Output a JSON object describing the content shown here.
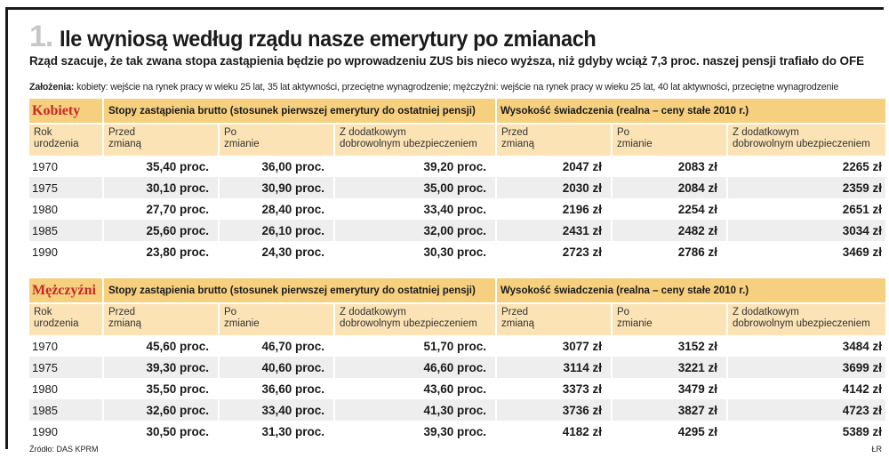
{
  "title_number": "1.",
  "title": "Ile wyniosą według rządu nasze emerytury po zmianach",
  "subtitle": "Rząd szacuje, że tak zwana stopa zastąpienia będzie po wprowadzeniu ZUS bis nieco wyższa, niż gdyby wciąż 7,3 proc. naszej pensji trafiało do OFE",
  "assumptions_label": "Założenia:",
  "assumptions_text": " kobiety: wejście na rynek pracy w wieku 25 lat, 35 lat aktywności, przeciętne wynagrodzenie; mężczyźni: wejście na rynek pracy w wieku 25 lat, 40 lat aktywności, przeciętne wynagrodzenie",
  "source": "Źródło: DAS KPRM",
  "author": "ŁR",
  "chart_data": [
    {
      "type": "table",
      "group": "Kobiety",
      "group_header_1": "Stopy zastąpienia brutto (stosunek pierwszej emerytury do ostatniej pensji)",
      "group_header_2": "Wysokość świadczenia (realna – ceny stałe 2010 r.)",
      "columns": [
        "Rok urodzenia",
        "Przed zmianą",
        "Po zmianie",
        "Z dodatkowym dobrowolnym ubezpieczeniem",
        "Przed zmianą",
        "Po zmianie",
        "Z dodatkowym dobrowolnym ubezpieczeniem"
      ],
      "col_labels": {
        "year": [
          "Rok",
          "urodzenia"
        ],
        "before": [
          "Przed",
          "zmianą"
        ],
        "after": [
          "Po",
          "zmianie"
        ],
        "extra": [
          "Z dodatkowym",
          "dobrowolnym ubezpieczeniem"
        ]
      },
      "rows": [
        {
          "year": "1970",
          "rate_before": "35,40 proc.",
          "rate_after": "36,00 proc.",
          "rate_extra": "39,20 proc.",
          "amt_before": "2047 zł",
          "amt_after": "2083 zł",
          "amt_extra": "2265 zł"
        },
        {
          "year": "1975",
          "rate_before": "30,10 proc.",
          "rate_after": "30,90 proc.",
          "rate_extra": "35,00 proc.",
          "amt_before": "2030 zł",
          "amt_after": "2084 zł",
          "amt_extra": "2359 zł"
        },
        {
          "year": "1980",
          "rate_before": "27,70 proc.",
          "rate_after": "28,40 proc.",
          "rate_extra": "33,40 proc.",
          "amt_before": "2196 zł",
          "amt_after": "2254 zł",
          "amt_extra": "2651 zł"
        },
        {
          "year": "1985",
          "rate_before": "25,60 proc.",
          "rate_after": "26,10 proc.",
          "rate_extra": "32,00 proc.",
          "amt_before": "2431 zł",
          "amt_after": "2482 zł",
          "amt_extra": "3034 zł"
        },
        {
          "year": "1990",
          "rate_before": "23,80 proc.",
          "rate_after": "24,30 proc.",
          "rate_extra": "30,30 proc.",
          "amt_before": "2723 zł",
          "amt_after": "2786 zł",
          "amt_extra": "3469 zł"
        }
      ]
    },
    {
      "type": "table",
      "group": "Mężczyźni",
      "group_header_1": "Stopy zastąpienia brutto (stosunek pierwszej emerytury do ostatniej pensji)",
      "group_header_2": "Wysokość świadczenia (realna – ceny stałe 2010 r.)",
      "columns": [
        "Rok urodzenia",
        "Przed zmianą",
        "Po zmianie",
        "Z dodatkowym dobrowolnym ubezpieczeniem",
        "Przed zmianą",
        "Po zmianie",
        "Z dodatkowym dobrowolnym ubezpieczeniem"
      ],
      "col_labels": {
        "year": [
          "Rok",
          "urodzenia"
        ],
        "before": [
          "Przed",
          "zmianą"
        ],
        "after": [
          "Po",
          "zmianie"
        ],
        "extra": [
          "Z dodatkowym",
          "dobrowolnym ubezpieczeniem"
        ]
      },
      "rows": [
        {
          "year": "1970",
          "rate_before": "45,60 proc.",
          "rate_after": "46,70 proc.",
          "rate_extra": "51,70 proc.",
          "amt_before": "3077 zł",
          "amt_after": "3152 zł",
          "amt_extra": "3484 zł"
        },
        {
          "year": "1975",
          "rate_before": "39,30 proc.",
          "rate_after": "40,60 proc.",
          "rate_extra": "46,60 proc.",
          "amt_before": "3114 zł",
          "amt_after": "3221 zł",
          "amt_extra": "3699 zł"
        },
        {
          "year": "1980",
          "rate_before": "35,50 proc.",
          "rate_after": "36,60 proc.",
          "rate_extra": "43,60 proc.",
          "amt_before": "3373 zł",
          "amt_after": "3479 zł",
          "amt_extra": "4142 zł"
        },
        {
          "year": "1985",
          "rate_before": "32,60 proc.",
          "rate_after": "33,40 proc.",
          "rate_extra": "41,30 proc.",
          "amt_before": "3736 zł",
          "amt_after": "3827 zł",
          "amt_extra": "4723 zł"
        },
        {
          "year": "1990",
          "rate_before": "30,50 proc.",
          "rate_after": "31,30 proc.",
          "rate_extra": "39,30 proc.",
          "amt_before": "4182 zł",
          "amt_after": "4295 zł",
          "amt_extra": "5389 zł"
        }
      ]
    }
  ]
}
